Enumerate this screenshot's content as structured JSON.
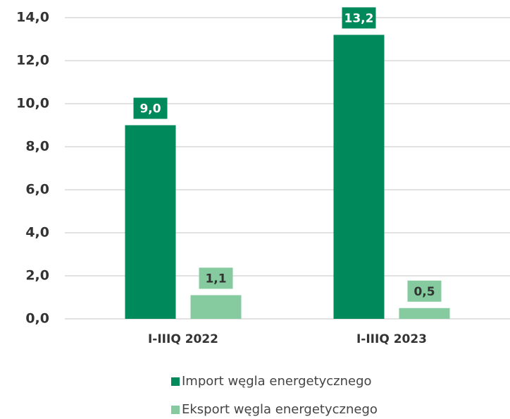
{
  "chart_data": {
    "type": "bar",
    "categories": [
      "I-IIIQ 2022",
      "I-IIIQ 2023"
    ],
    "series": [
      {
        "name": "Import węgla energetycznego",
        "color": "#008a5b",
        "values": [
          9.0,
          13.2
        ],
        "value_labels": [
          "9,0",
          "13,2"
        ]
      },
      {
        "name": "Eksport węgla energetycznego",
        "color": "#85cb9f",
        "values": [
          1.1,
          0.5
        ],
        "value_labels": [
          "1,1",
          "0,5"
        ]
      }
    ],
    "ylim": [
      0,
      14
    ],
    "yticks": [
      {
        "value": 0,
        "label": "0,0"
      },
      {
        "value": 2,
        "label": "2,0"
      },
      {
        "value": 4,
        "label": "4,0"
      },
      {
        "value": 6,
        "label": "6,0"
      },
      {
        "value": 8,
        "label": "8,0"
      },
      {
        "value": 10,
        "label": "10,0"
      },
      {
        "value": 12,
        "label": "12,0"
      },
      {
        "value": 14,
        "label": "14,0"
      }
    ],
    "grid": true,
    "legend": "bottom"
  }
}
